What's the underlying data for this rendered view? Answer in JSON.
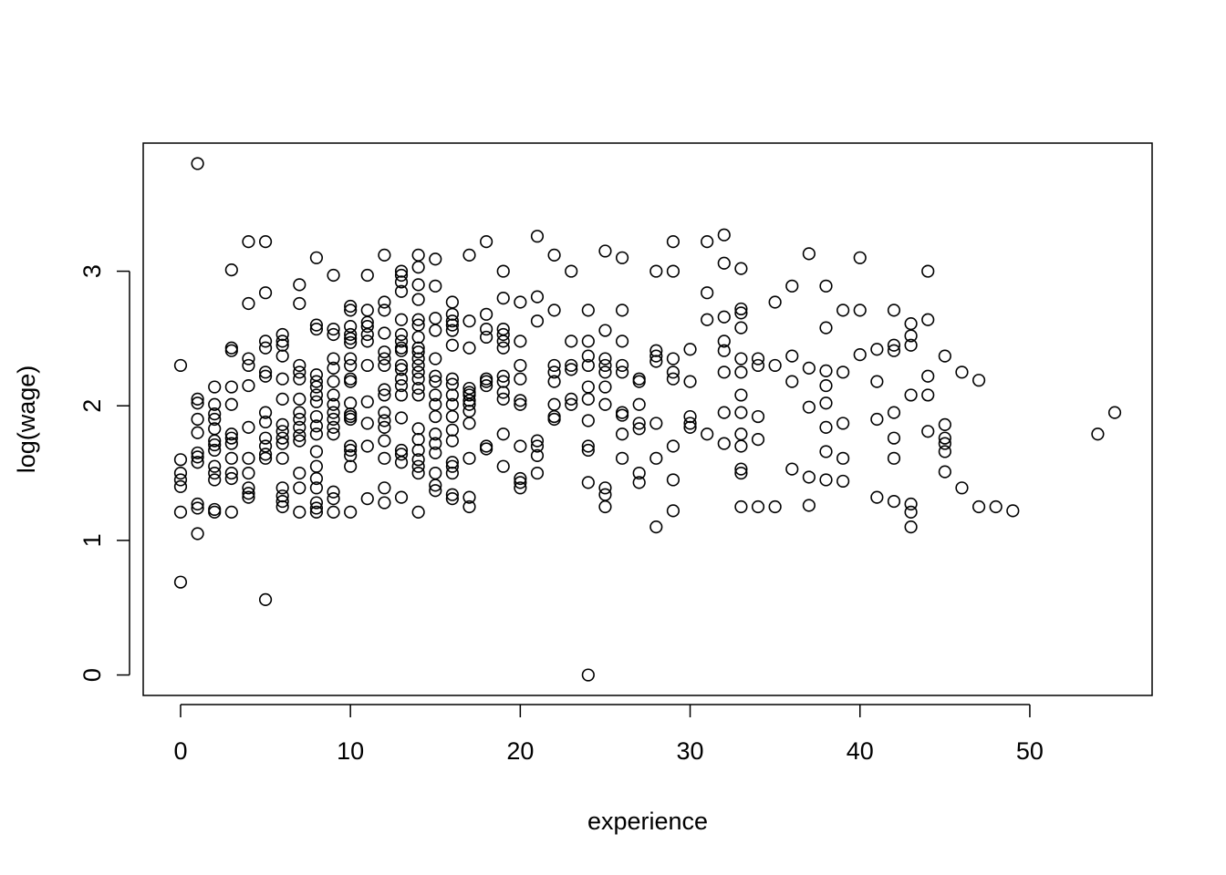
{
  "chart_data": {
    "type": "scatter",
    "x_label": "experience",
    "y_label": "log(wage)",
    "xlim": [
      -2.2,
      57.2
    ],
    "ylim": [
      -0.152,
      3.952
    ],
    "xticks": [
      0,
      10,
      20,
      30,
      40,
      50
    ],
    "yticks": [
      0,
      1,
      2,
      3
    ],
    "color": "#000000",
    "x": [
      0,
      0,
      0,
      0,
      0,
      0,
      0,
      1,
      1,
      1,
      1,
      1,
      1,
      1,
      1,
      1,
      1,
      1,
      2,
      2,
      2,
      2,
      2,
      2,
      2,
      2,
      2,
      2,
      2,
      2,
      2,
      3,
      3,
      3,
      3,
      3,
      3,
      3,
      3,
      3,
      3,
      3,
      3,
      4,
      4,
      4,
      4,
      4,
      4,
      4,
      4,
      4,
      4,
      4,
      5,
      5,
      5,
      5,
      5,
      5,
      5,
      5,
      5,
      5,
      5,
      5,
      5,
      6,
      6,
      6,
      6,
      6,
      6,
      6,
      6,
      6,
      6,
      6,
      6,
      6,
      6,
      6,
      7,
      7,
      7,
      7,
      7,
      7,
      7,
      7,
      7,
      7,
      7,
      7,
      7,
      7,
      8,
      8,
      8,
      8,
      8,
      8,
      8,
      8,
      8,
      8,
      8,
      8,
      8,
      8,
      8,
      8,
      8,
      8,
      9,
      9,
      9,
      9,
      9,
      9,
      9,
      9,
      9,
      9,
      9,
      9,
      9,
      9,
      9,
      10,
      10,
      10,
      10,
      10,
      10,
      10,
      10,
      10,
      10,
      10,
      10,
      10,
      10,
      10,
      10,
      10,
      10,
      10,
      11,
      11,
      11,
      11,
      11,
      11,
      11,
      11,
      11,
      11,
      11,
      12,
      12,
      12,
      12,
      12,
      12,
      12,
      12,
      12,
      12,
      12,
      12,
      12,
      12,
      12,
      12,
      13,
      13,
      13,
      13,
      13,
      13,
      13,
      13,
      13,
      13,
      13,
      13,
      13,
      13,
      13,
      13,
      13,
      13,
      13,
      14,
      14,
      14,
      14,
      14,
      14,
      14,
      14,
      14,
      14,
      14,
      14,
      14,
      14,
      14,
      14,
      14,
      14,
      14,
      14,
      14,
      14,
      15,
      15,
      15,
      15,
      15,
      15,
      15,
      15,
      15,
      15,
      15,
      15,
      15,
      15,
      15,
      15,
      16,
      16,
      16,
      16,
      16,
      16,
      16,
      16,
      16,
      16,
      16,
      16,
      16,
      16,
      16,
      16,
      16,
      16,
      17,
      17,
      17,
      17,
      17,
      17,
      17,
      17,
      17,
      17,
      17,
      17,
      17,
      18,
      18,
      18,
      18,
      18,
      18,
      18,
      18,
      18,
      19,
      19,
      19,
      19,
      19,
      19,
      19,
      19,
      19,
      19,
      19,
      19,
      20,
      20,
      20,
      20,
      20,
      20,
      20,
      20,
      20,
      20,
      21,
      21,
      21,
      21,
      21,
      21,
      21,
      22,
      22,
      22,
      22,
      22,
      22,
      22,
      22,
      23,
      23,
      23,
      23,
      23,
      23,
      24,
      24,
      24,
      24,
      24,
      24,
      24,
      24,
      24,
      24,
      24,
      25,
      25,
      25,
      25,
      25,
      25,
      25,
      25,
      25,
      25,
      26,
      26,
      26,
      26,
      26,
      26,
      26,
      26,
      26,
      27,
      27,
      27,
      27,
      27,
      27,
      27,
      28,
      28,
      28,
      28,
      28,
      28,
      28,
      29,
      29,
      29,
      29,
      29,
      29,
      29,
      29,
      30,
      30,
      30,
      30,
      30,
      31,
      31,
      31,
      31,
      32,
      32,
      32,
      32,
      32,
      32,
      32,
      32,
      33,
      33,
      33,
      33,
      33,
      33,
      33,
      33,
      33,
      33,
      33,
      33,
      33,
      34,
      34,
      34,
      34,
      34,
      35,
      35,
      35,
      36,
      36,
      36,
      36,
      37,
      37,
      37,
      37,
      37,
      38,
      38,
      38,
      38,
      38,
      38,
      38,
      38,
      39,
      39,
      39,
      39,
      39,
      40,
      40,
      40,
      41,
      41,
      41,
      41,
      42,
      42,
      42,
      42,
      42,
      42,
      42,
      43,
      43,
      43,
      43,
      43,
      43,
      43,
      44,
      44,
      44,
      44,
      44,
      45,
      45,
      45,
      45,
      45,
      45,
      46,
      46,
      47,
      47,
      48,
      49,
      54,
      55
    ],
    "y": [
      2.3,
      1.6,
      1.5,
      1.45,
      1.4,
      1.21,
      0.69,
      3.8,
      2.05,
      2.02,
      1.9,
      1.8,
      1.65,
      1.62,
      1.58,
      1.27,
      1.24,
      1.05,
      2.14,
      2.01,
      1.94,
      1.9,
      1.83,
      1.74,
      1.71,
      1.67,
      1.55,
      1.5,
      1.45,
      1.23,
      1.21,
      3.01,
      2.43,
      2.41,
      2.14,
      2.01,
      1.79,
      1.76,
      1.72,
      1.61,
      1.5,
      1.46,
      1.21,
      3.22,
      2.76,
      2.35,
      2.3,
      2.15,
      1.84,
      1.61,
      1.5,
      1.39,
      1.35,
      1.32,
      3.22,
      2.84,
      2.48,
      2.43,
      2.25,
      2.22,
      1.95,
      1.88,
      1.76,
      1.7,
      1.64,
      1.61,
      0.56,
      2.53,
      2.48,
      2.45,
      2.37,
      2.2,
      2.05,
      1.86,
      1.81,
      1.76,
      1.72,
      1.61,
      1.39,
      1.33,
      1.29,
      1.25,
      2.9,
      2.76,
      2.3,
      2.25,
      2.2,
      2.05,
      1.95,
      1.9,
      1.84,
      1.78,
      1.74,
      1.5,
      1.39,
      1.21,
      3.1,
      2.6,
      2.57,
      2.23,
      2.18,
      2.14,
      2.08,
      2.03,
      1.92,
      1.85,
      1.79,
      1.66,
      1.55,
      1.46,
      1.39,
      1.28,
      1.24,
      1.21,
      2.97,
      2.57,
      2.53,
      2.35,
      2.28,
      2.18,
      2.08,
      2.01,
      1.95,
      1.9,
      1.84,
      1.79,
      1.36,
      1.31,
      1.21,
      2.74,
      2.71,
      2.59,
      2.53,
      2.5,
      2.47,
      2.35,
      2.3,
      2.2,
      2.18,
      2.02,
      1.94,
      1.92,
      1.9,
      1.7,
      1.67,
      1.63,
      1.55,
      1.21,
      2.97,
      2.71,
      2.62,
      2.59,
      2.53,
      2.48,
      2.3,
      2.03,
      1.87,
      1.7,
      1.31,
      3.12,
      2.77,
      2.71,
      2.54,
      2.4,
      2.35,
      2.3,
      2.12,
      2.08,
      1.95,
      1.89,
      1.84,
      1.74,
      1.61,
      1.39,
      1.28,
      3.0,
      2.97,
      2.92,
      2.85,
      2.64,
      2.53,
      2.48,
      2.43,
      2.41,
      2.3,
      2.27,
      2.2,
      2.15,
      2.08,
      1.91,
      1.67,
      1.64,
      1.58,
      1.32,
      3.12,
      3.03,
      2.9,
      2.79,
      2.64,
      2.6,
      2.51,
      2.43,
      2.4,
      2.35,
      2.3,
      2.25,
      2.2,
      2.13,
      2.08,
      1.83,
      1.75,
      1.67,
      1.6,
      1.55,
      1.5,
      1.21,
      3.09,
      2.89,
      2.65,
      2.56,
      2.35,
      2.22,
      2.18,
      2.08,
      2.01,
      1.92,
      1.79,
      1.72,
      1.65,
      1.5,
      1.41,
      1.37,
      2.77,
      2.68,
      2.63,
      2.6,
      2.56,
      2.45,
      2.2,
      2.16,
      2.08,
      2.01,
      1.92,
      1.82,
      1.74,
      1.58,
      1.55,
      1.5,
      1.34,
      1.31,
      3.12,
      2.63,
      2.43,
      2.13,
      2.1,
      2.08,
      2.04,
      2.01,
      1.96,
      1.87,
      1.61,
      1.32,
      1.25,
      3.22,
      2.68,
      2.57,
      2.51,
      2.2,
      2.18,
      2.15,
      1.7,
      1.68,
      3.0,
      2.8,
      2.57,
      2.53,
      2.48,
      2.43,
      2.22,
      2.18,
      2.1,
      2.05,
      1.79,
      1.55,
      2.77,
      2.48,
      2.3,
      2.2,
      2.04,
      2.01,
      1.7,
      1.46,
      1.43,
      1.39,
      3.26,
      2.81,
      2.63,
      1.74,
      1.7,
      1.63,
      1.5,
      3.12,
      2.71,
      2.3,
      2.25,
      2.18,
      2.01,
      1.92,
      1.9,
      3.0,
      2.48,
      2.3,
      2.27,
      2.05,
      2.01,
      2.71,
      2.48,
      2.37,
      2.3,
      2.14,
      2.05,
      1.89,
      1.7,
      1.67,
      1.43,
      0,
      3.15,
      2.56,
      2.35,
      2.3,
      2.25,
      2.14,
      2.01,
      1.39,
      1.34,
      1.25,
      3.1,
      2.71,
      2.48,
      2.3,
      2.25,
      1.95,
      1.93,
      1.79,
      1.61,
      2.2,
      2.18,
      2.01,
      1.87,
      1.83,
      1.5,
      1.43,
      3.0,
      2.41,
      2.37,
      2.33,
      1.87,
      1.61,
      1.1,
      3.22,
      3.0,
      2.35,
      2.25,
      2.2,
      1.7,
      1.45,
      1.22,
      2.42,
      2.18,
      1.92,
      1.87,
      1.84,
      3.22,
      2.84,
      2.64,
      1.79,
      3.27,
      3.06,
      2.66,
      2.48,
      2.41,
      2.25,
      1.95,
      1.72,
      3.02,
      2.72,
      2.69,
      2.58,
      2.35,
      2.25,
      2.08,
      1.95,
      1.79,
      1.7,
      1.53,
      1.5,
      1.25,
      2.35,
      2.3,
      1.92,
      1.75,
      1.25,
      2.77,
      2.3,
      1.25,
      2.89,
      2.37,
      2.18,
      1.53,
      3.13,
      2.28,
      1.99,
      1.47,
      1.26,
      2.89,
      2.58,
      2.26,
      2.15,
      2.02,
      1.84,
      1.66,
      1.45,
      2.71,
      2.25,
      1.87,
      1.61,
      1.44,
      3.1,
      2.71,
      2.38,
      2.42,
      2.18,
      1.9,
      1.32,
      2.71,
      2.45,
      2.41,
      1.95,
      1.76,
      1.61,
      1.29,
      2.61,
      2.52,
      2.45,
      2.08,
      1.27,
      1.21,
      1.1,
      3.0,
      2.64,
      2.22,
      2.08,
      1.81,
      2.37,
      1.86,
      1.76,
      1.72,
      1.66,
      1.51,
      2.25,
      1.39,
      2.19,
      1.25,
      1.25,
      1.22,
      1.79,
      1.95
    ]
  }
}
